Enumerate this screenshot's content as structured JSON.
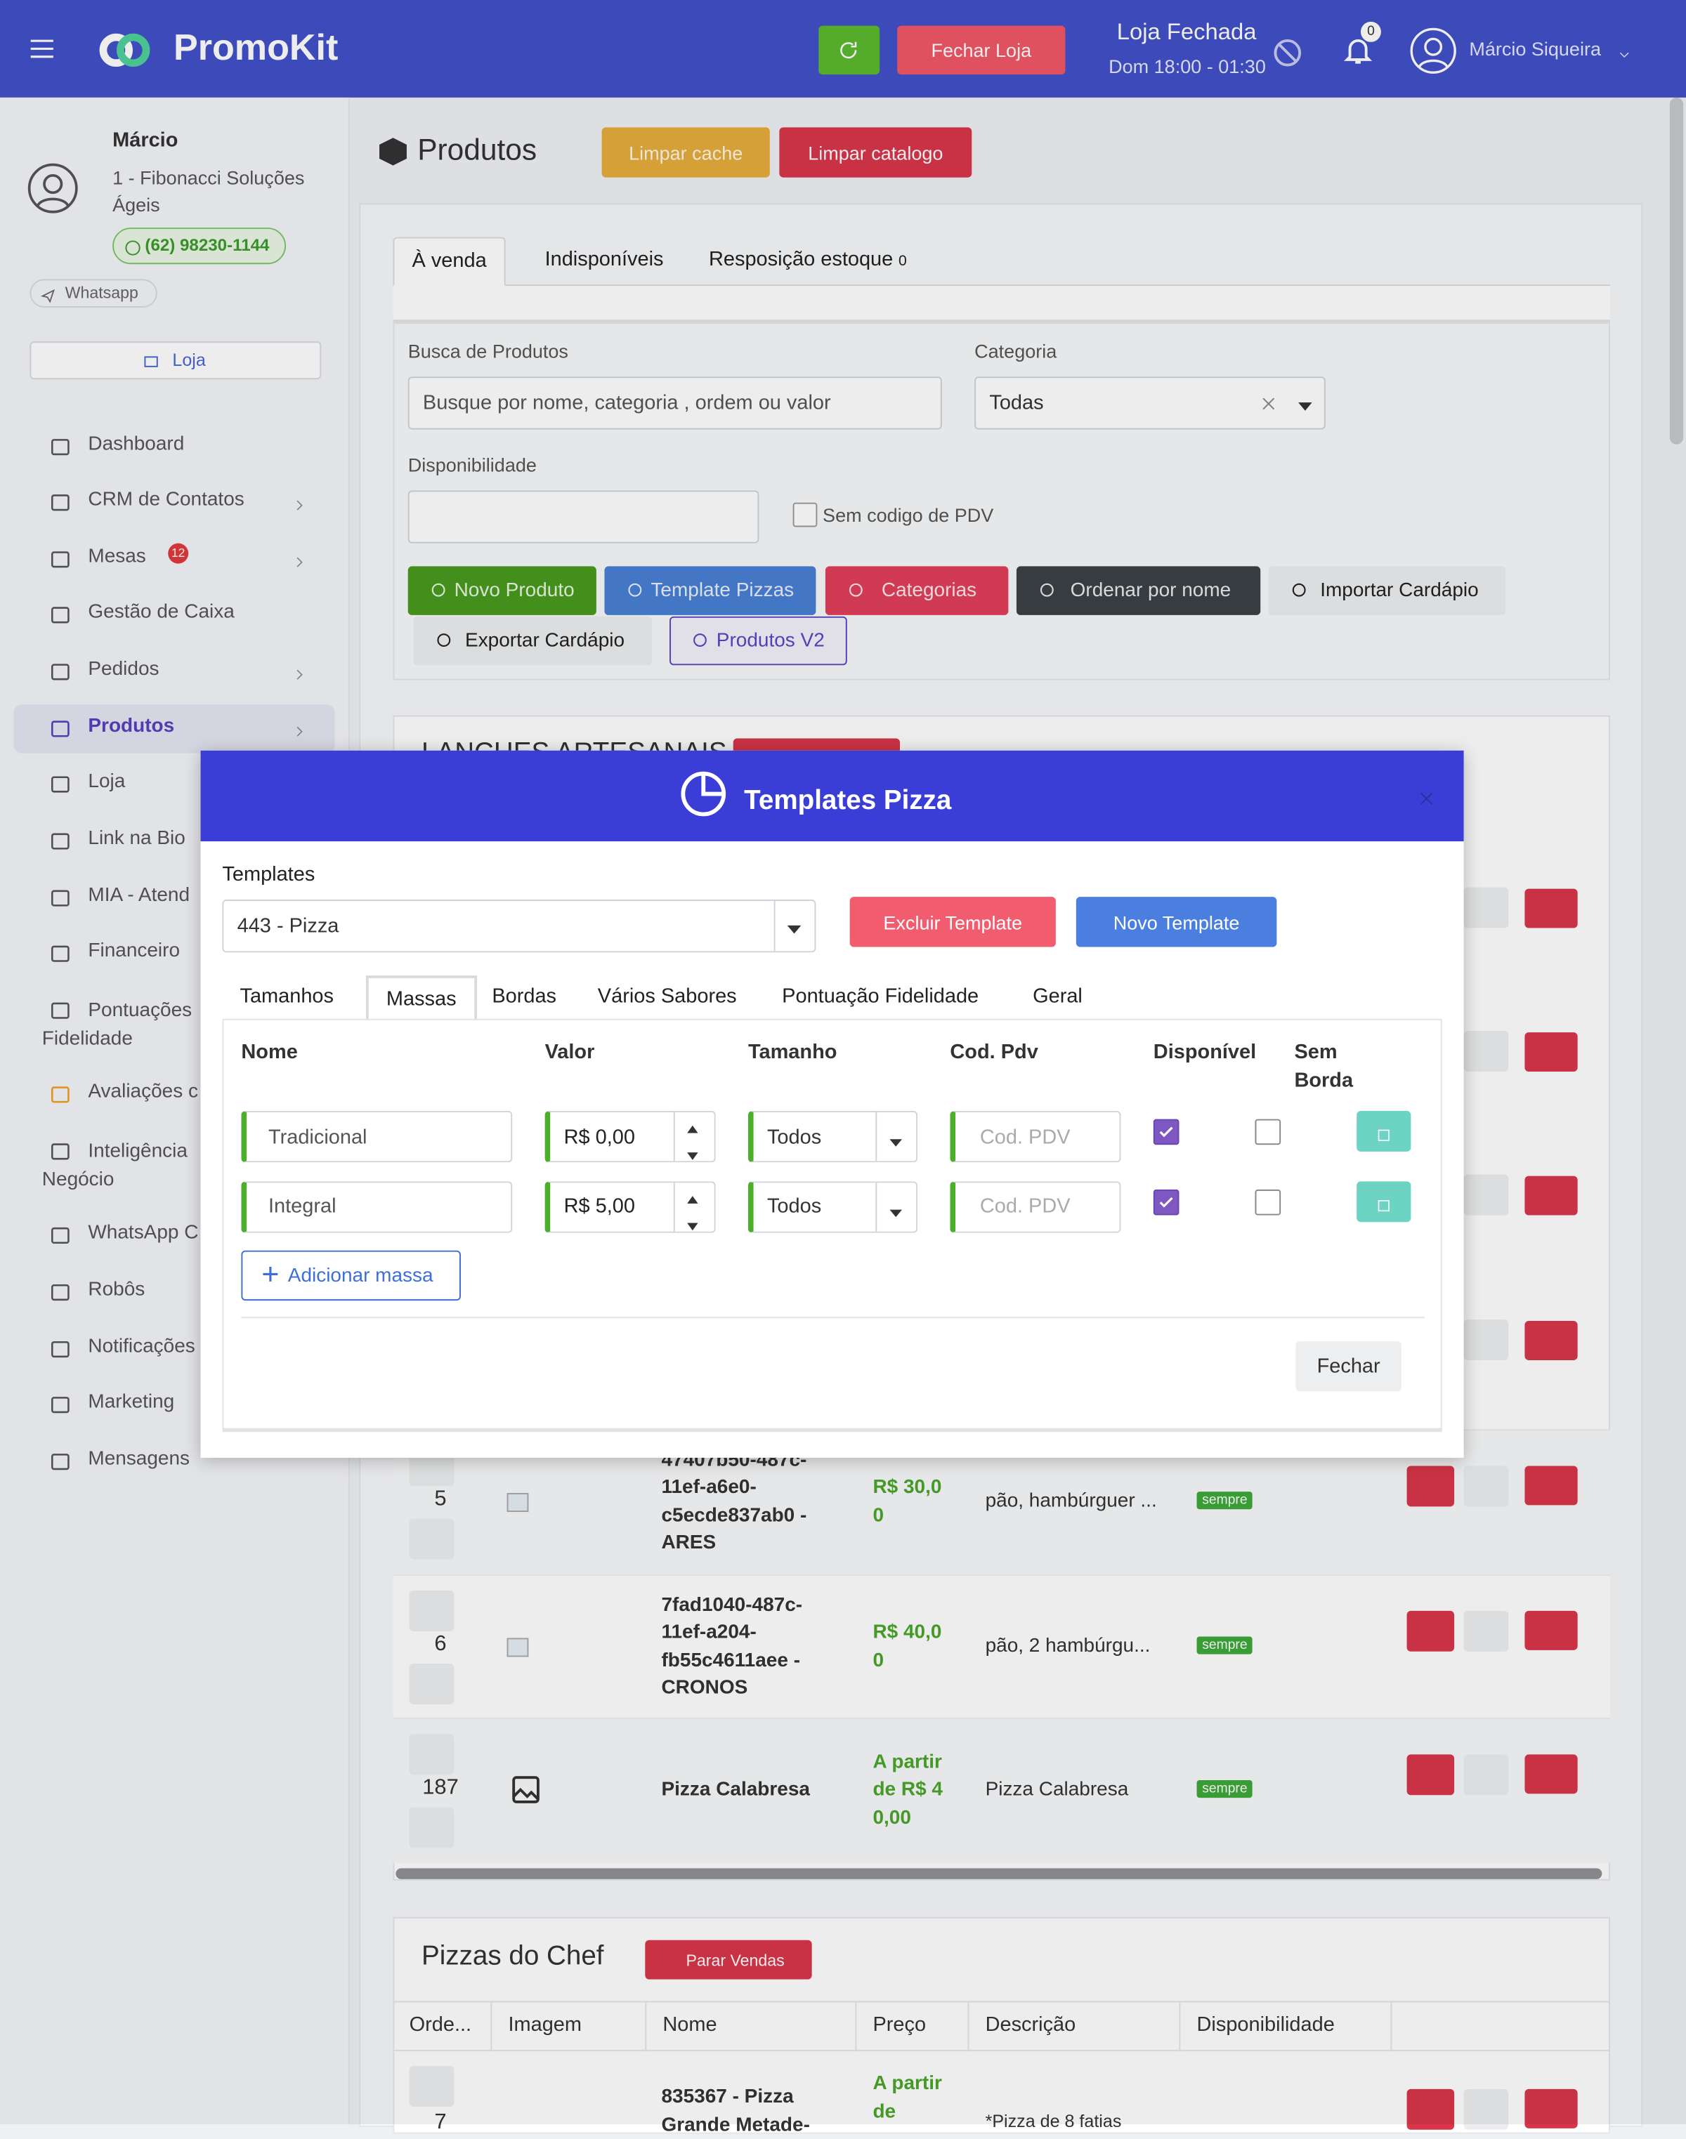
{
  "header": {
    "brand": "PromoKit",
    "close_store": "Fechar Loja",
    "status": "Loja Fechada",
    "hours": "Dom 18:00 - 01:30",
    "notifications": "0",
    "user": "Márcio Siqueira"
  },
  "sidebar": {
    "name": "Márcio",
    "company": "1 - Fibonacci Soluções Ágeis",
    "phone": "(62) 98230-1144",
    "whatsapp": "Whatsapp",
    "store": "Loja",
    "menu": [
      {
        "label": "Dashboard"
      },
      {
        "label": "CRM de Contatos",
        "submenu": true
      },
      {
        "label": "Mesas",
        "badge": "12",
        "submenu": true
      },
      {
        "label": "Gestão de Caixa"
      },
      {
        "label": "Pedidos",
        "submenu": true
      },
      {
        "label": "Produtos",
        "submenu": true,
        "active": true
      },
      {
        "label": "Loja"
      },
      {
        "label": "Link na Bio"
      },
      {
        "label": "MIA - Atend"
      },
      {
        "label": "Financeiro"
      },
      {
        "label": "Pontuações Fidelidade"
      },
      {
        "label": "Avaliações c"
      },
      {
        "label": "Inteligência Negócio"
      },
      {
        "label": "WhatsApp C"
      },
      {
        "label": "Robôs"
      },
      {
        "label": "Notificações"
      },
      {
        "label": "Marketing"
      },
      {
        "label": "Mensagens"
      }
    ]
  },
  "page": {
    "title": "Produtos",
    "clear_cache": "Limpar cache",
    "clear_catalog": "Limpar catalogo",
    "tabs": [
      "À venda",
      "Indisponíveis",
      "Resposição estoque"
    ],
    "restock_count": "0",
    "search_label": "Busca de Produtos",
    "search_placeholder": "Busque por nome, categoria , ordem ou valor",
    "category_label": "Categoria",
    "category_value": "Todas",
    "availability_label": "Disponibilidade",
    "no_pdv_label": "Sem codigo de PDV",
    "actions": [
      "Novo Produto",
      "Template Pizzas",
      "Categorias",
      "Ordenar por nome",
      "Importar Cardápio",
      "Exportar Cardápio",
      "Produtos V2"
    ],
    "section1": {
      "title": "LANCHES ARTESANAIS",
      "rows": [
        {
          "order": 5,
          "name": "47407b50-487c-11ef-a6e0-c5ecde837ab0 - ARES",
          "price": "R$ 30,00",
          "description": "pão, hambúrguer ...",
          "availability": "sempre"
        },
        {
          "order": 6,
          "name": "7fad1040-487c-11ef-a204-fb55c4611aee - CRONOS",
          "price": "R$ 40,00",
          "description": "pão, 2 hambúrgu...",
          "availability": "sempre"
        },
        {
          "order": 187,
          "name": "Pizza Calabresa",
          "price": "A partir de R$ 40,00",
          "description": "Pizza Calabresa",
          "availability": "sempre",
          "image_placeholder": true
        }
      ]
    },
    "section2": {
      "title": "Pizzas do Chef",
      "stop_sales": "Parar Vendas",
      "columns": [
        "Orde...",
        "Imagem",
        "Nome",
        "Preço",
        "Descrição",
        "Disponibilidade"
      ],
      "rows": [
        {
          "order": 7,
          "name": "835367 - Pizza Grande Metade-",
          "price": "A partir de",
          "description": "*Pizza de 8 fatias"
        }
      ]
    }
  },
  "modal": {
    "title": "Templates Pizza",
    "templates_label": "Templates",
    "template_value": "443 - Pizza",
    "delete": "Excluir Template",
    "new": "Novo Template",
    "tabs": [
      "Tamanhos",
      "Massas",
      "Bordas",
      "Vários Sabores",
      "Pontuação Fidelidade",
      "Geral"
    ],
    "active_tab": 1,
    "columns": [
      "Nome",
      "Valor",
      "Tamanho",
      "Cod. Pdv",
      "Disponível",
      "Sem Borda"
    ],
    "rows": [
      {
        "name": "Tradicional",
        "value": "R$ 0,00",
        "size": "Todos",
        "pdv_placeholder": "Cod. PDV",
        "available": true,
        "no_border": false
      },
      {
        "name": "Integral",
        "value": "R$ 5,00",
        "size": "Todos",
        "pdv_placeholder": "Cod. PDV",
        "available": true,
        "no_border": false
      }
    ],
    "add": "Adicionar massa",
    "close": "Fechar"
  }
}
